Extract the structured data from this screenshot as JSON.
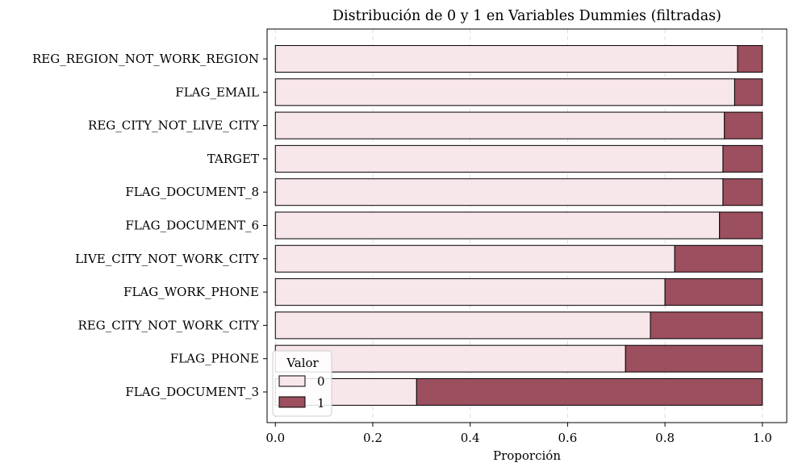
{
  "chart_data": {
    "type": "bar",
    "orientation": "horizontal",
    "stacked": true,
    "title": "Distribución de 0 y 1 en Variables Dummies (filtradas)",
    "xlabel": "Proporción",
    "ylabel": "",
    "xlim": [
      -0.017,
      1.05
    ],
    "xticks": [
      "0.0",
      "0.2",
      "0.4",
      "0.6",
      "0.8",
      "1.0"
    ],
    "grid": "vertical dashed",
    "categories": [
      "REG_REGION_NOT_WORK_REGION",
      "FLAG_EMAIL",
      "REG_CITY_NOT_LIVE_CITY",
      "TARGET",
      "FLAG_DOCUMENT_8",
      "FLAG_DOCUMENT_6",
      "LIVE_CITY_NOT_WORK_CITY",
      "FLAG_WORK_PHONE",
      "REG_CITY_NOT_WORK_CITY",
      "FLAG_PHONE",
      "FLAG_DOCUMENT_3"
    ],
    "series": [
      {
        "name": "0",
        "color": "#f7e6ea",
        "values": [
          0.949,
          0.943,
          0.922,
          0.919,
          0.919,
          0.912,
          0.82,
          0.8,
          0.77,
          0.719,
          0.29
        ]
      },
      {
        "name": "1",
        "color": "#9c4f5e",
        "values": [
          0.051,
          0.057,
          0.078,
          0.081,
          0.081,
          0.088,
          0.18,
          0.2,
          0.23,
          0.281,
          0.71
        ]
      }
    ],
    "legend": {
      "title": "Valor",
      "placement": "lower-left"
    }
  }
}
